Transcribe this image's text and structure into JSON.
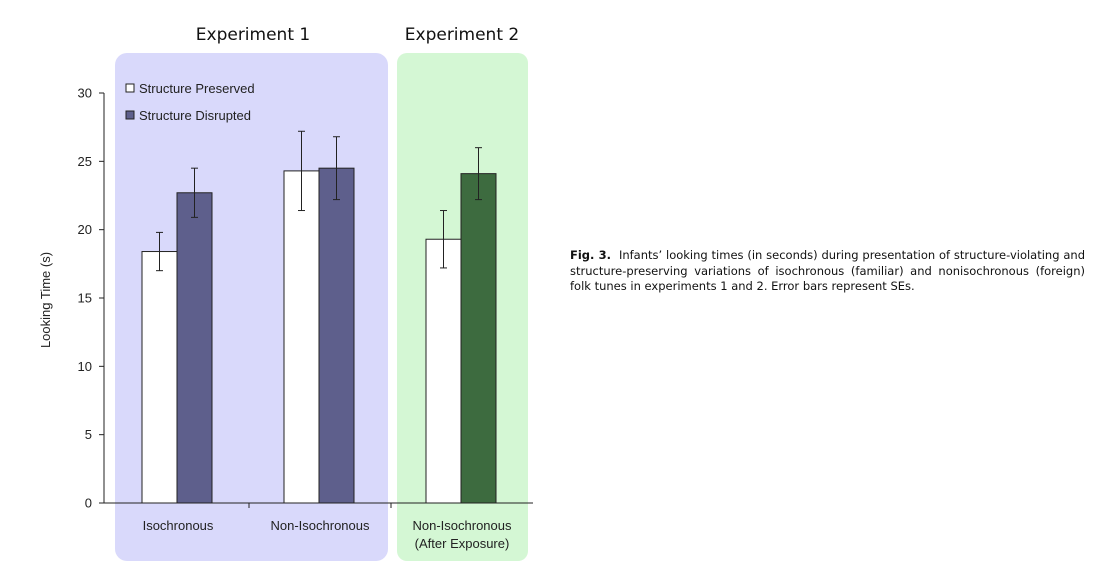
{
  "chart_data": {
    "type": "bar",
    "ylabel": "Looking Time (s)",
    "ylim": [
      0,
      30
    ],
    "yticks": [
      0,
      5,
      10,
      15,
      20,
      25,
      30
    ],
    "panels": [
      {
        "title": "Experiment 1",
        "background": "#d9d9fb"
      },
      {
        "title": "Experiment 2",
        "background": "#d4f7d4"
      }
    ],
    "legend": {
      "placement": "top-left",
      "entries": [
        "Structure Preserved",
        "Structure Disrupted"
      ]
    },
    "groups": [
      {
        "label": [
          "Isochronous"
        ],
        "panel": 0,
        "bars": [
          {
            "series": "Structure Preserved",
            "value": 18.4,
            "err": 1.4,
            "color": "#ffffff"
          },
          {
            "series": "Structure Disrupted",
            "value": 22.7,
            "err": 1.8,
            "color": "#5e5f8c"
          }
        ]
      },
      {
        "label": [
          "Non-Isochronous"
        ],
        "panel": 0,
        "bars": [
          {
            "series": "Structure Preserved",
            "value": 24.3,
            "err": 2.9,
            "color": "#ffffff"
          },
          {
            "series": "Structure Disrupted",
            "value": 24.5,
            "err": 2.3,
            "color": "#5e5f8c"
          }
        ]
      },
      {
        "label": [
          "Non-Isochronous",
          "(After Exposure)"
        ],
        "panel": 1,
        "bars": [
          {
            "series": "Structure Preserved",
            "value": 19.3,
            "err": 2.1,
            "color": "#ffffff"
          },
          {
            "series": "Structure Disrupted",
            "value": 24.1,
            "err": 1.9,
            "color": "#3d6b3f"
          }
        ]
      }
    ]
  },
  "caption": {
    "label": "Fig. 3.",
    "text": "Infants’ looking times (in seconds) during presentation of structure-violating and structure-preserving variations of isochronous (familiar) and nonisochronous (foreign) folk tunes in experiments 1 and 2. Error bars represent SEs."
  }
}
